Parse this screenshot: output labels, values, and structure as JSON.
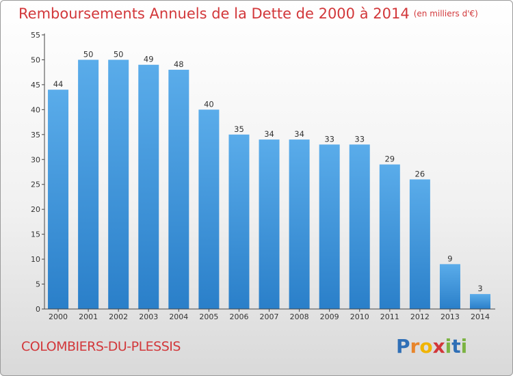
{
  "title": "Remboursements Annuels de la Dette de 2000 à 2014",
  "subtitle": "(en milliers d'€)",
  "commune": "COLOMBIERS-DU-PLESSIS",
  "logo": {
    "text": "Proxiti",
    "letter_colors": [
      "#2f6fb6",
      "#e8852b",
      "#f0b400",
      "#d2373a",
      "#7cb342",
      "#2f6fb6",
      "#7cb342"
    ]
  },
  "colors": {
    "title": "#d2373a",
    "bar_top": "#5aacea",
    "bar_bottom": "#2a7fc9",
    "axis": "#444444"
  },
  "chart_data": {
    "type": "bar",
    "title": "Remboursements Annuels de la Dette de 2000 à 2014",
    "subtitle": "(en milliers d'€)",
    "categories": [
      "2000",
      "2001",
      "2002",
      "2003",
      "2004",
      "2005",
      "2006",
      "2007",
      "2008",
      "2009",
      "2010",
      "2011",
      "2012",
      "2013",
      "2014"
    ],
    "values": [
      44,
      50,
      50,
      49,
      48,
      40,
      35,
      34,
      34,
      33,
      33,
      29,
      26,
      9,
      3
    ],
    "ylim": [
      0,
      55
    ],
    "yticks": [
      0,
      5,
      10,
      15,
      20,
      25,
      30,
      35,
      40,
      45,
      50,
      55
    ],
    "grid": false,
    "legend": "none",
    "data_labels": true
  }
}
